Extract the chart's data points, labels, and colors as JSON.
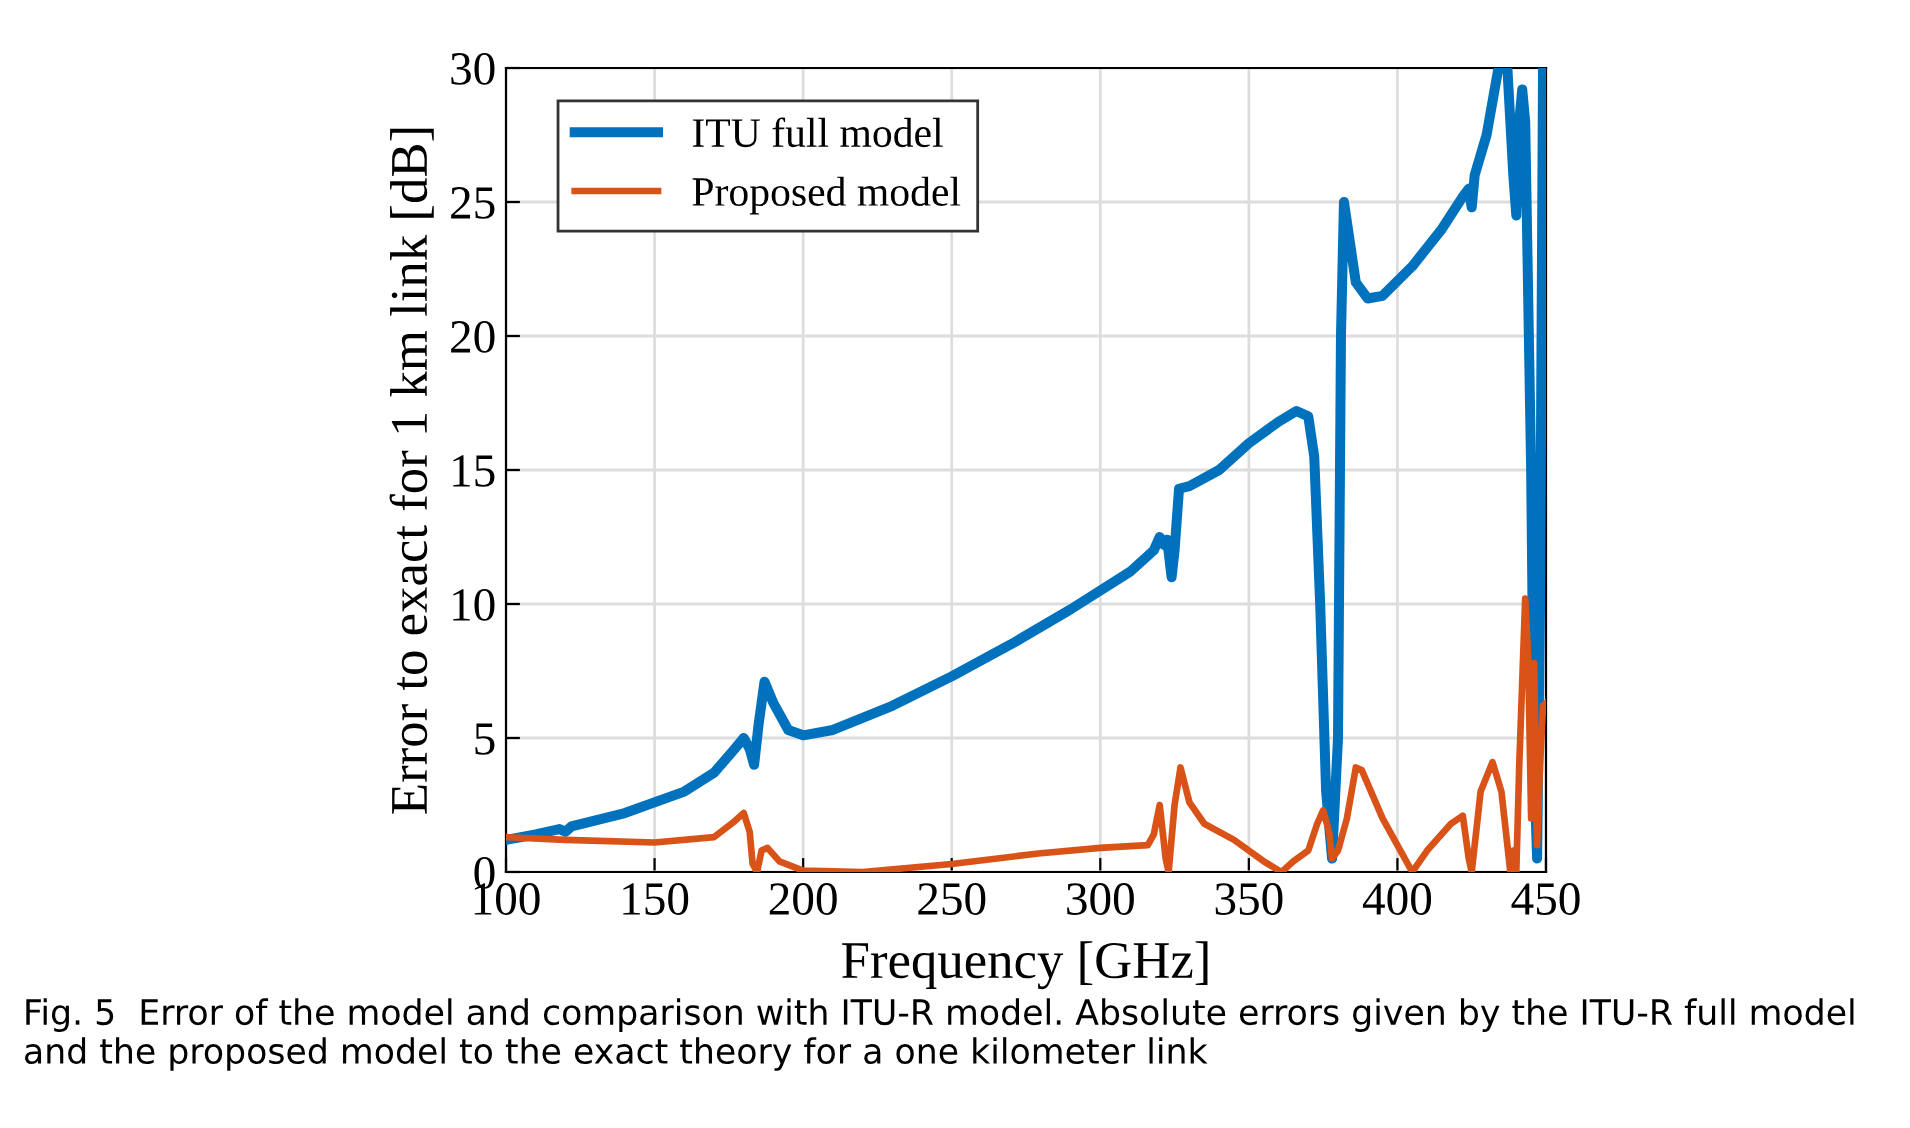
{
  "chart_data": {
    "type": "line",
    "xlabel": "Frequency [GHz]",
    "ylabel": "Error to exact for 1 km link [dB]",
    "xlim": [
      100,
      450
    ],
    "ylim": [
      0,
      30
    ],
    "xticks": [
      100,
      150,
      200,
      250,
      300,
      350,
      400,
      450
    ],
    "yticks": [
      0,
      5,
      10,
      15,
      20,
      25,
      30
    ],
    "grid": true,
    "legend": "top left",
    "annotations": [
      "Fig. 5  Error of the model and comparison with ITU-R model. Absolute errors given by the ITU-R full model and the proposed model to the exact theory for a one kilometer link"
    ],
    "series": [
      {
        "name": "ITU full model",
        "color": "#0072bd",
        "x": [
          100,
          110,
          118,
          120,
          122,
          140,
          160,
          170,
          177,
          180,
          182,
          183.5,
          185,
          187,
          190,
          195,
          200,
          210,
          230,
          250,
          270,
          290,
          310,
          318,
          320,
          321.5,
          322.5,
          324,
          325,
          326.5,
          330,
          340,
          350,
          360,
          366,
          370,
          372,
          374,
          376,
          378,
          380,
          381,
          382,
          384,
          386,
          390,
          395,
          405,
          415,
          422,
          424,
          425,
          426,
          430,
          434,
          437,
          439,
          440,
          441,
          442,
          443,
          445,
          446,
          447,
          448,
          449
        ],
        "values": [
          1.2,
          1.4,
          1.6,
          1.5,
          1.7,
          2.2,
          3.0,
          3.7,
          4.6,
          5.0,
          4.6,
          4.0,
          5.5,
          7.1,
          6.3,
          5.3,
          5.1,
          5.3,
          6.2,
          7.3,
          8.5,
          9.8,
          11.2,
          12.0,
          12.5,
          12.2,
          12.4,
          11.0,
          12.0,
          14.3,
          14.4,
          15.0,
          16.0,
          16.8,
          17.2,
          17.0,
          15.5,
          10,
          3,
          0.5,
          5,
          20,
          25.0,
          23.5,
          22,
          21.4,
          21.5,
          22.6,
          24.0,
          25.2,
          25.5,
          24.8,
          26.0,
          27.5,
          30,
          30,
          26,
          24.5,
          28,
          29.2,
          28,
          15,
          4,
          0.5,
          10,
          30
        ]
      },
      {
        "name": "Proposed model",
        "color": "#d95319",
        "x": [
          100,
          120,
          150,
          170,
          177,
          180,
          182,
          183,
          184.5,
          186,
          188,
          192,
          200,
          220,
          250,
          280,
          300,
          316,
          318,
          320,
          322,
          323,
          325,
          327,
          330,
          335,
          345,
          355,
          361,
          365,
          370,
          373,
          375,
          377,
          378,
          380,
          383,
          386,
          388,
          395,
          405,
          410,
          418,
          422,
          424,
          425,
          426,
          428,
          432,
          435,
          437,
          438,
          439,
          440,
          441,
          443,
          444,
          445,
          446,
          447,
          448,
          449,
          450
        ],
        "values": [
          1.3,
          1.2,
          1.1,
          1.3,
          1.9,
          2.2,
          1.5,
          0.3,
          0,
          0.8,
          0.9,
          0.4,
          0.05,
          0,
          0.3,
          0.7,
          0.9,
          1.0,
          1.4,
          2.5,
          0.5,
          0,
          2.5,
          3.9,
          2.6,
          1.8,
          1.2,
          0.4,
          0,
          0.4,
          0.8,
          1.8,
          2.3,
          1.5,
          0.5,
          0.8,
          2.0,
          3.9,
          3.8,
          2.0,
          0.0,
          0.8,
          1.8,
          2.1,
          0.5,
          0,
          1,
          3,
          4.1,
          3.0,
          1,
          0,
          0.8,
          0,
          4,
          10.2,
          8,
          2,
          7.8,
          1,
          4,
          6.2,
          6.3
        ]
      }
    ]
  }
}
